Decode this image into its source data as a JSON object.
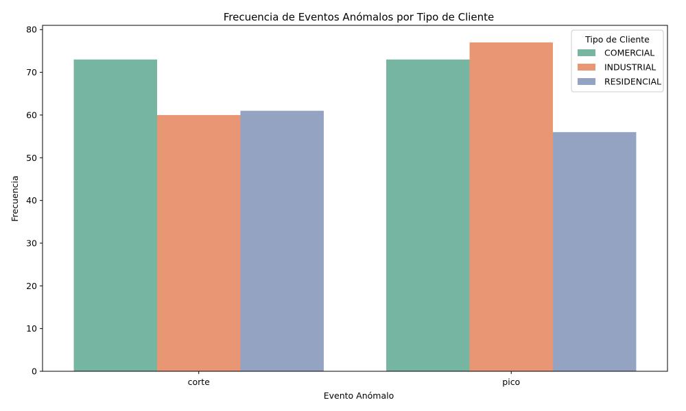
{
  "chart_data": {
    "type": "bar",
    "title": "Frecuencia de Eventos Anómalos por Tipo de Cliente",
    "xlabel": "Evento Anómalo",
    "ylabel": "Frecuencia",
    "categories": [
      "corte",
      "pico"
    ],
    "series": [
      {
        "name": "COMERCIAL",
        "values": [
          73,
          73
        ],
        "color": "#75b5a1"
      },
      {
        "name": "INDUSTRIAL",
        "values": [
          60,
          77
        ],
        "color": "#e89674"
      },
      {
        "name": "RESIDENCIAL",
        "values": [
          61,
          56
        ],
        "color": "#95a3c3"
      }
    ],
    "ylim": [
      0,
      81
    ],
    "yticks": [
      0,
      10,
      20,
      30,
      40,
      50,
      60,
      70,
      80
    ],
    "legend": {
      "title": "Tipo de Cliente",
      "placement": "top-right"
    },
    "grid": false
  }
}
